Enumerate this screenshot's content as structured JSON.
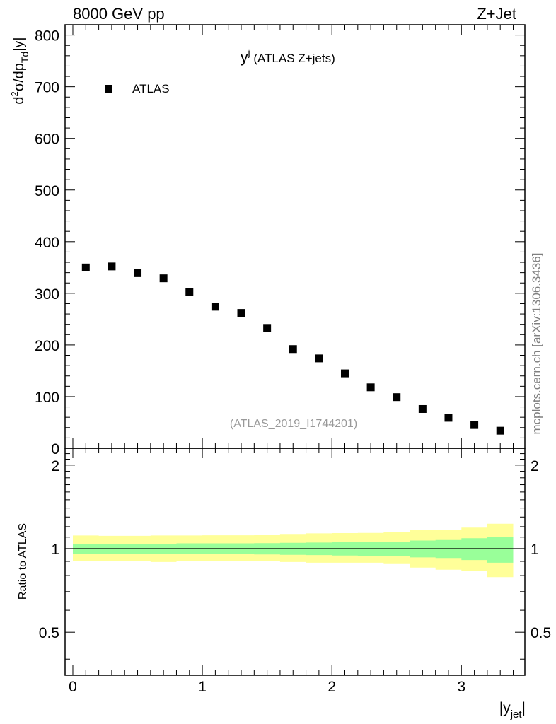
{
  "header": {
    "left": "8000 GeV pp",
    "right": "Z+Jet"
  },
  "side_label": "mcplots.cern.ch [arXiv:1306.3436]",
  "watermark": "(ATLAS_2019_I1744201)",
  "chart_data": [
    {
      "panel": "main",
      "type": "scatter",
      "title": "y",
      "title_sup": "j",
      "title_suffix": " (ATLAS Z+jets)",
      "ylabel": "d²σ/dp_Td|y|",
      "ylim": [
        0,
        820
      ],
      "yticks": [
        100,
        200,
        300,
        400,
        500,
        600,
        700,
        800
      ],
      "yticklabels": [
        "100",
        "200",
        "300",
        "400",
        "500",
        "600",
        "700",
        "800"
      ],
      "legend": {
        "position": "top-left",
        "entries": [
          "ATLAS"
        ]
      },
      "marker_color": "#000000",
      "series": [
        {
          "name": "ATLAS",
          "x": [
            0.1,
            0.3,
            0.5,
            0.7,
            0.9,
            1.1,
            1.3,
            1.5,
            1.7,
            1.9,
            2.1,
            2.3,
            2.5,
            2.7,
            2.9,
            3.1,
            3.3
          ],
          "y": [
            350,
            352,
            339,
            329,
            303,
            274,
            262,
            233,
            192,
            174,
            145,
            118,
            99,
            76,
            59,
            45,
            34
          ]
        }
      ]
    },
    {
      "panel": "ratio",
      "type": "area",
      "ylabel": "Ratio to ATLAS",
      "ylim": [
        0.35,
        2.3
      ],
      "yticks": [
        0.5,
        1,
        2
      ],
      "yticklabels": [
        "0.5",
        "1",
        "2"
      ],
      "xlabel": "|y_jet|",
      "xlim": [
        -0.06,
        3.49
      ],
      "xticks": [
        0,
        1,
        2,
        3
      ],
      "xticklabels": [
        "0",
        "1",
        "2",
        "3"
      ],
      "reference_line": 1.0,
      "bin_edges": [
        0.0,
        0.2,
        0.4,
        0.6,
        0.8,
        1.0,
        1.2,
        1.4,
        1.6,
        1.8,
        2.0,
        2.2,
        2.4,
        2.6,
        2.8,
        3.0,
        3.2,
        3.4
      ],
      "bands": [
        {
          "name": "total uncertainty",
          "color": "#ffff99",
          "upper": [
            1.115,
            1.112,
            1.112,
            1.115,
            1.115,
            1.117,
            1.117,
            1.12,
            1.13,
            1.135,
            1.138,
            1.14,
            1.145,
            1.165,
            1.17,
            1.19,
            1.23
          ],
          "lower": [
            0.9,
            0.9,
            0.9,
            0.895,
            0.9,
            0.9,
            0.9,
            0.9,
            0.895,
            0.89,
            0.89,
            0.89,
            0.885,
            0.855,
            0.84,
            0.83,
            0.79
          ]
        },
        {
          "name": "statistical uncertainty",
          "color": "#99ff99",
          "upper": [
            1.04,
            1.04,
            1.04,
            1.04,
            1.045,
            1.045,
            1.045,
            1.047,
            1.05,
            1.052,
            1.055,
            1.06,
            1.06,
            1.07,
            1.075,
            1.09,
            1.1
          ],
          "lower": [
            0.96,
            0.96,
            0.96,
            0.96,
            0.955,
            0.955,
            0.955,
            0.953,
            0.95,
            0.948,
            0.945,
            0.94,
            0.94,
            0.93,
            0.925,
            0.91,
            0.89
          ]
        }
      ]
    }
  ]
}
